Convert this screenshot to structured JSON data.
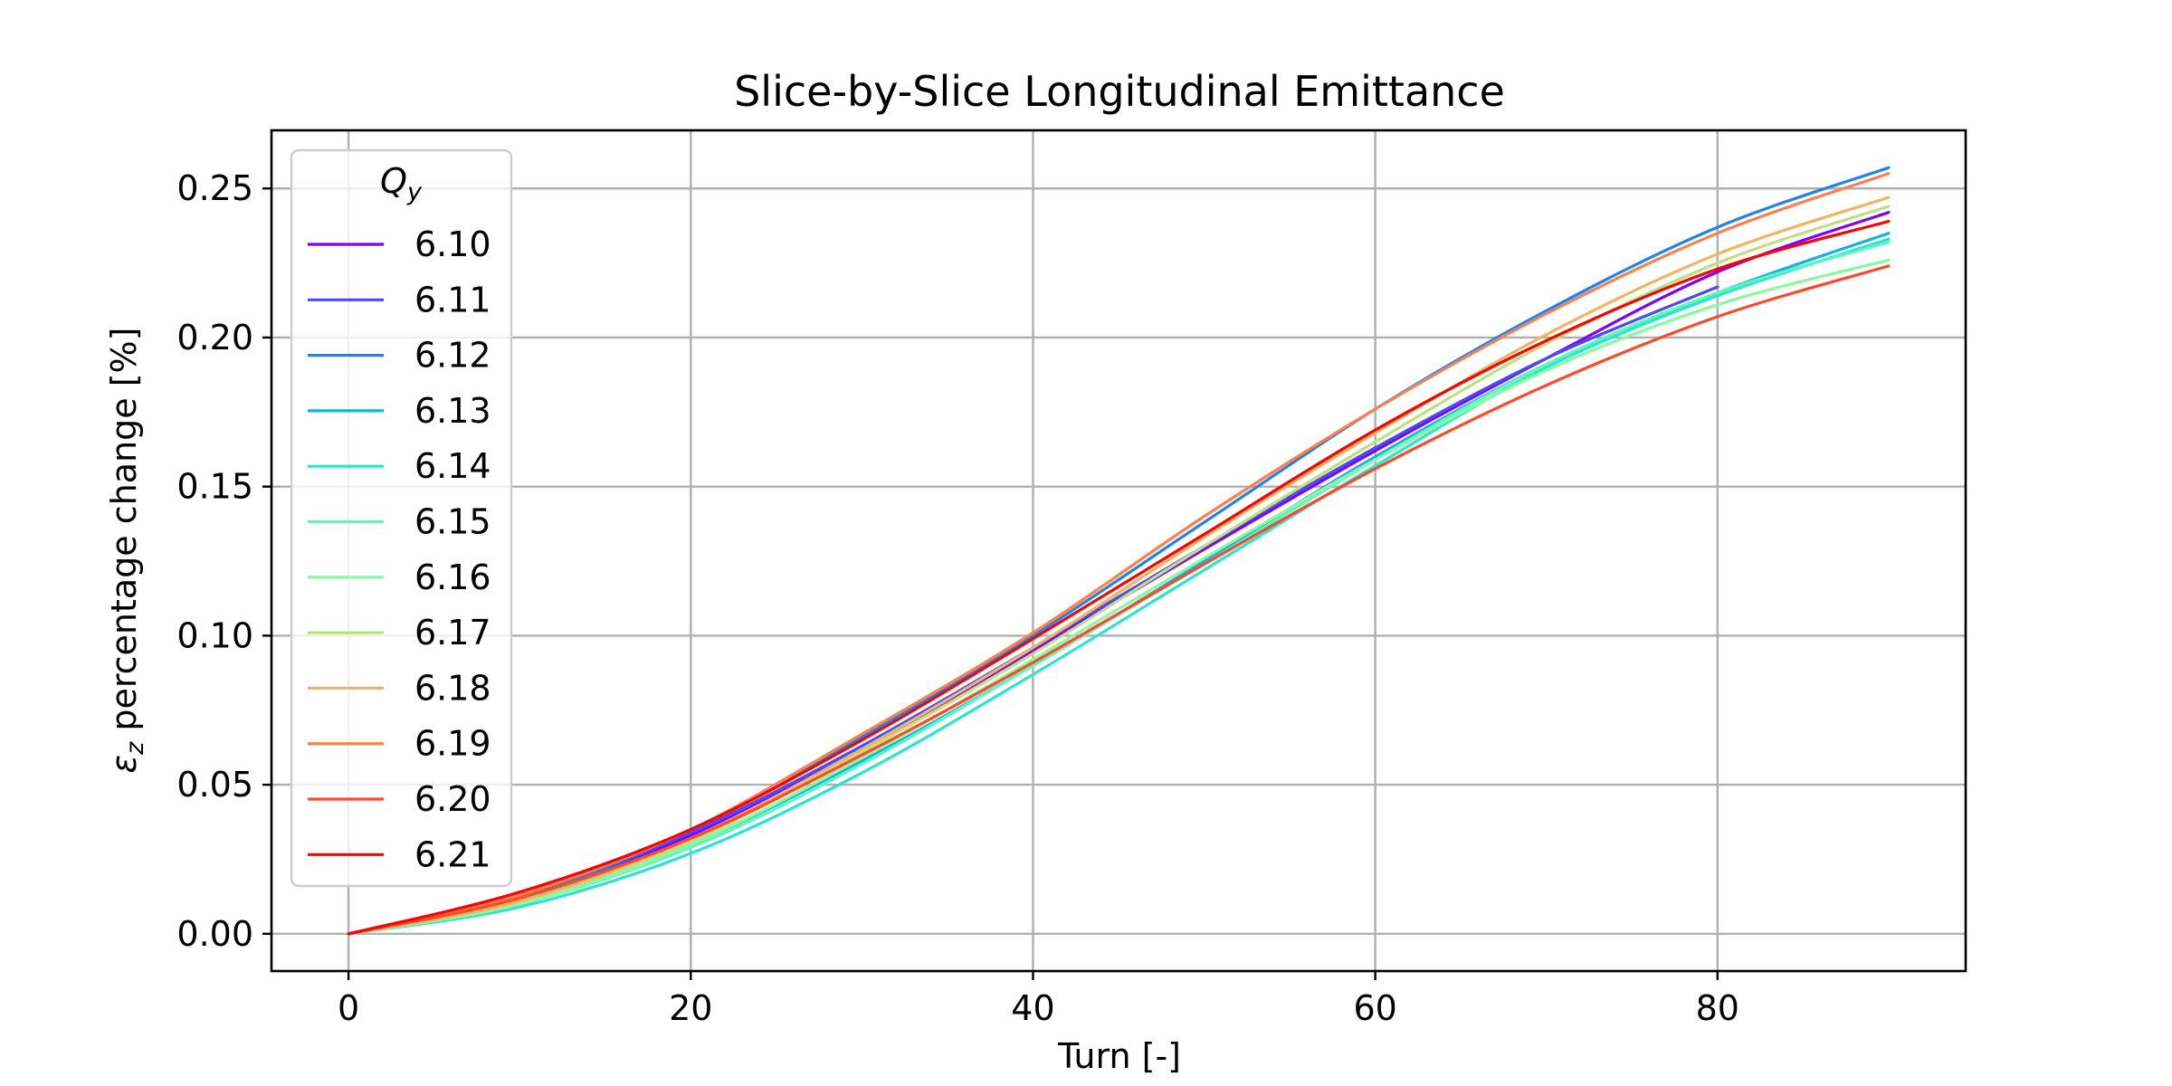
{
  "chart_data": {
    "type": "line",
    "title": "Slice-by-Slice Longitudinal Emittance",
    "xlabel": "Turn [-]",
    "ylabel_symbol": "ε",
    "ylabel_subscript": "z",
    "ylabel_rest": " percentage change [%]",
    "xlim": [
      -4.5,
      94.5
    ],
    "ylim": [
      -0.0125,
      0.2695
    ],
    "x_ticks": [
      0,
      20,
      40,
      60,
      80
    ],
    "y_ticks": [
      0.0,
      0.05,
      0.1,
      0.15,
      0.2,
      0.25
    ],
    "x_tick_labels": [
      "0",
      "20",
      "40",
      "60",
      "80"
    ],
    "y_tick_labels": [
      "0.00",
      "0.05",
      "0.10",
      "0.15",
      "0.20",
      "0.25"
    ],
    "grid": true,
    "legend": {
      "placement": "upper-left",
      "title_symbol": "Q",
      "title_subscript": "y"
    },
    "series": [
      {
        "name": "6.10",
        "color": "#7f00ff",
        "x": [
          0,
          10,
          20,
          30,
          40,
          50,
          60,
          70,
          80,
          90
        ],
        "y": [
          0.0,
          0.012,
          0.033,
          0.062,
          0.095,
          0.129,
          0.162,
          0.193,
          0.222,
          0.242
        ]
      },
      {
        "name": "6.11",
        "color": "#4b4bf5",
        "x": [
          0,
          10,
          20,
          30,
          40,
          50,
          60,
          70,
          80
        ],
        "y": [
          0.0,
          0.012,
          0.034,
          0.063,
          0.096,
          0.13,
          0.163,
          0.193,
          0.217
        ]
      },
      {
        "name": "6.12",
        "color": "#1e83ec",
        "x": [
          0,
          10,
          20,
          30,
          40,
          50,
          60,
          70,
          80,
          90
        ],
        "y": [
          0.0,
          0.012,
          0.035,
          0.066,
          0.1,
          0.138,
          0.176,
          0.209,
          0.237,
          0.257
        ]
      },
      {
        "name": "6.13",
        "color": "#10b3e5",
        "x": [
          0,
          10,
          20,
          30,
          40,
          50,
          60,
          70,
          80,
          90
        ],
        "y": [
          0.0,
          0.01,
          0.03,
          0.058,
          0.09,
          0.125,
          0.16,
          0.191,
          0.215,
          0.235
        ]
      },
      {
        "name": "6.14",
        "color": "#2ce4d0",
        "x": [
          0,
          10,
          20,
          30,
          40,
          50,
          60,
          70,
          80,
          90
        ],
        "y": [
          0.0,
          0.009,
          0.027,
          0.054,
          0.087,
          0.122,
          0.157,
          0.19,
          0.214,
          0.233
        ]
      },
      {
        "name": "6.15",
        "color": "#5cf7bc",
        "x": [
          0,
          10,
          20,
          30,
          40,
          50,
          60,
          70,
          80,
          90
        ],
        "y": [
          0.0,
          0.01,
          0.029,
          0.057,
          0.09,
          0.124,
          0.159,
          0.191,
          0.215,
          0.232
        ]
      },
      {
        "name": "6.16",
        "color": "#8cf8a0",
        "x": [
          0,
          10,
          20,
          30,
          40,
          50,
          60,
          70,
          80,
          90
        ],
        "y": [
          0.0,
          0.01,
          0.03,
          0.059,
          0.092,
          0.126,
          0.159,
          0.189,
          0.211,
          0.226
        ]
      },
      {
        "name": "6.17",
        "color": "#c0e07e",
        "x": [
          0,
          10,
          20,
          30,
          40,
          50,
          60,
          70,
          80,
          90
        ],
        "y": [
          0.0,
          0.011,
          0.031,
          0.061,
          0.094,
          0.13,
          0.165,
          0.198,
          0.225,
          0.244
        ]
      },
      {
        "name": "6.18",
        "color": "#efb560",
        "x": [
          0,
          10,
          20,
          30,
          40,
          50,
          60,
          70,
          80,
          90
        ],
        "y": [
          0.0,
          0.011,
          0.032,
          0.062,
          0.096,
          0.133,
          0.168,
          0.201,
          0.228,
          0.247
        ]
      },
      {
        "name": "6.19",
        "color": "#ff7f4f",
        "x": [
          0,
          10,
          20,
          30,
          40,
          50,
          60,
          70,
          80,
          90
        ],
        "y": [
          0.0,
          0.013,
          0.035,
          0.067,
          0.101,
          0.14,
          0.176,
          0.208,
          0.235,
          0.255
        ]
      },
      {
        "name": "6.20",
        "color": "#ff4a2a",
        "x": [
          0,
          10,
          20,
          30,
          40,
          50,
          60,
          70,
          80,
          90
        ],
        "y": [
          0.0,
          0.012,
          0.032,
          0.06,
          0.091,
          0.124,
          0.156,
          0.184,
          0.207,
          0.224
        ]
      },
      {
        "name": "6.21",
        "color": "#ff0000",
        "x": [
          0,
          10,
          20,
          30,
          40,
          50,
          60,
          70,
          80,
          90
        ],
        "y": [
          0.0,
          0.014,
          0.035,
          0.065,
          0.099,
          0.134,
          0.169,
          0.199,
          0.223,
          0.239
        ]
      }
    ]
  }
}
